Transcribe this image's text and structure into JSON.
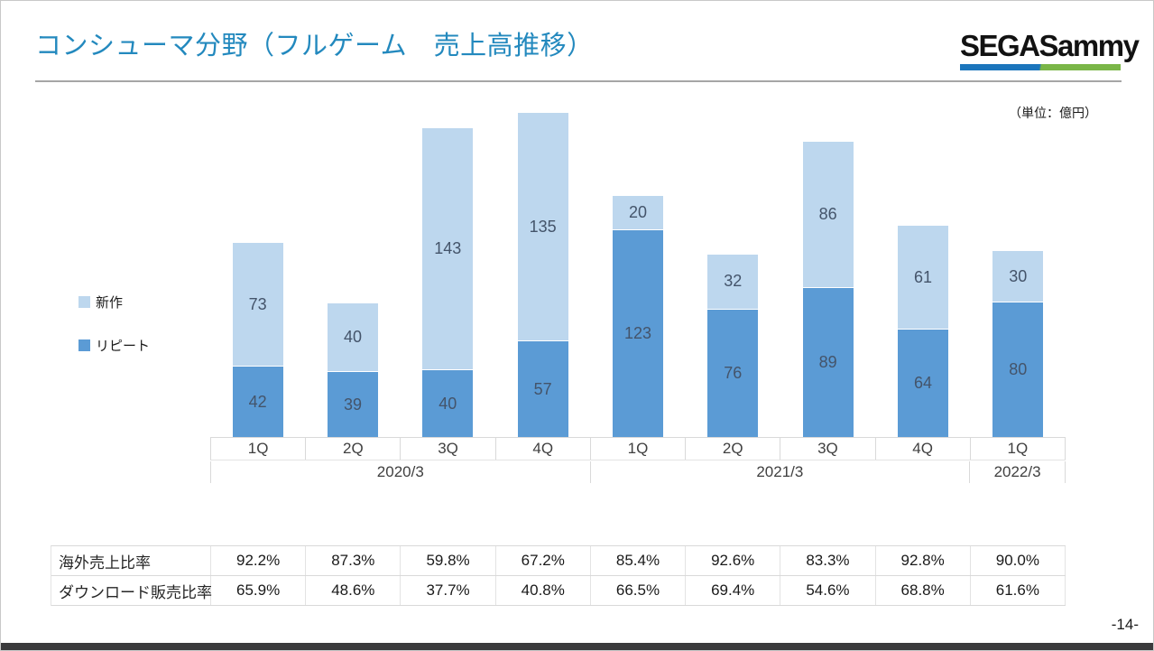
{
  "slide": {
    "title": "コンシューマ分野（フルゲーム　売上高推移）",
    "logo_text": "SEGASammy",
    "unit_label": "（単位：億円）",
    "page_number": "-14-"
  },
  "colors": {
    "title_blue": "#2389be",
    "new_title_light_blue": "#BDD7EE",
    "repeat_dark_blue": "#5B9BD5",
    "bar_value_label": "#44546a",
    "logo_bar_blue": "#1b75bc",
    "logo_bar_green": "#7ab648"
  },
  "legend": {
    "items": [
      {
        "name": "new-titles",
        "label": "新作",
        "color": "#BDD7EE"
      },
      {
        "name": "repeat",
        "label": "リピート",
        "color": "#5B9BD5"
      }
    ]
  },
  "chart_data": {
    "type": "bar",
    "stacked": true,
    "title": "コンシューマ分野（フルゲーム　売上高推移）",
    "unit": "億円",
    "value_labels": true,
    "ylim": [
      0,
      205
    ],
    "categories": [
      "1Q",
      "2Q",
      "3Q",
      "4Q",
      "1Q",
      "2Q",
      "3Q",
      "4Q",
      "1Q"
    ],
    "year_groups": [
      {
        "label": "2020/3",
        "span": 4
      },
      {
        "label": "2021/3",
        "span": 4
      },
      {
        "label": "2022/3",
        "span": 1
      }
    ],
    "series": [
      {
        "name": "リピート",
        "color": "#5B9BD5",
        "values": [
          42,
          39,
          40,
          57,
          123,
          76,
          89,
          64,
          80
        ]
      },
      {
        "name": "新作",
        "color": "#BDD7EE",
        "values": [
          73,
          40,
          143,
          135,
          20,
          32,
          86,
          61,
          30
        ]
      }
    ],
    "totals": [
      115,
      79,
      183,
      192,
      143,
      108,
      175,
      125,
      110
    ]
  },
  "ratio_table": {
    "rows": [
      {
        "label": "海外売上比率",
        "values": [
          "92.2%",
          "87.3%",
          "59.8%",
          "67.2%",
          "85.4%",
          "92.6%",
          "83.3%",
          "92.8%",
          "90.0%"
        ]
      },
      {
        "label": "ダウンロード販売比率",
        "values": [
          "65.9%",
          "48.6%",
          "37.7%",
          "40.8%",
          "66.5%",
          "69.4%",
          "54.6%",
          "68.8%",
          "61.6%"
        ]
      }
    ]
  }
}
